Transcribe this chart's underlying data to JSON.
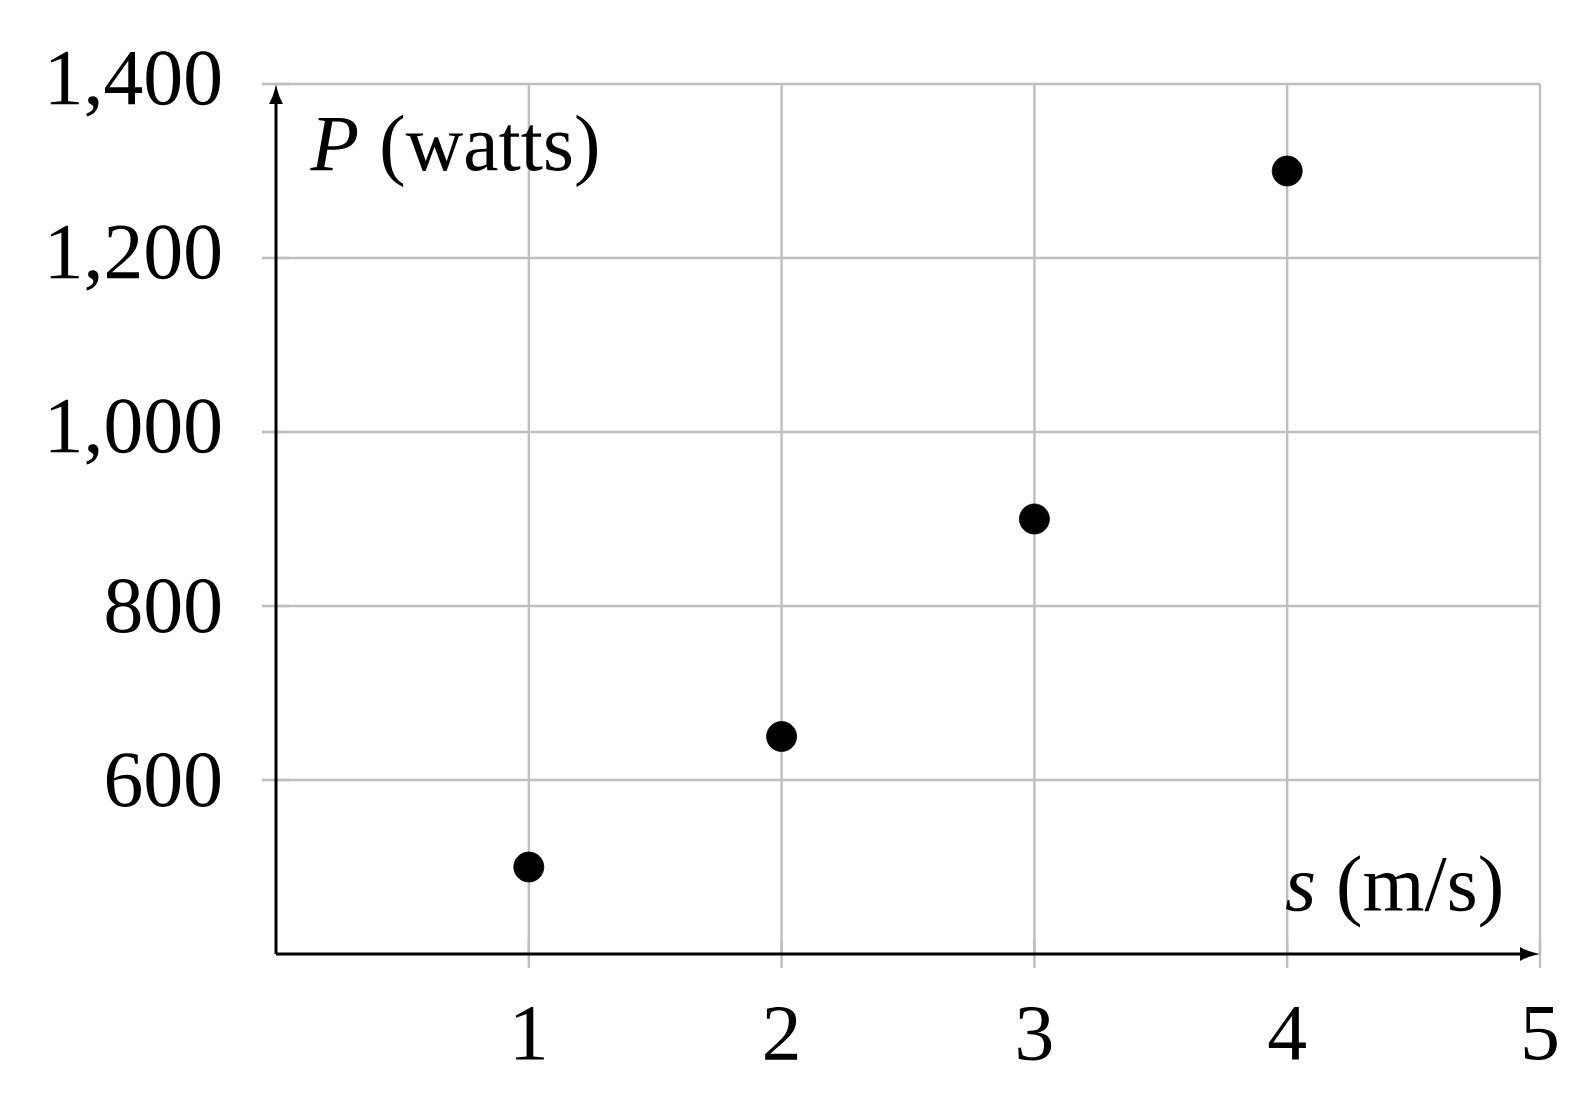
{
  "chart_data": {
    "type": "scatter",
    "xlabel": "*s* (m/s)",
    "ylabel": "*P* (watts)",
    "x": [
      1,
      2,
      3,
      4
    ],
    "values": [
      500,
      650,
      900,
      1300
    ],
    "color": "#000000",
    "marker": "circle",
    "xlim": [
      0,
      5
    ],
    "ylim": [
      400,
      1400
    ],
    "xticks": [
      1,
      2,
      3,
      4,
      5
    ],
    "yticks": [
      600,
      800,
      {
        "value": 1000,
        "label": "1,000"
      },
      {
        "value": 1200,
        "label": "1,200"
      },
      {
        "value": 1400,
        "label": "1,400"
      }
    ],
    "grid": true
  }
}
